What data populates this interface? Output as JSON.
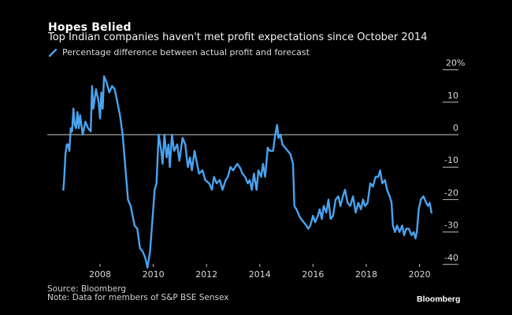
{
  "header": {
    "title": "Hopes Belied",
    "subtitle": "Top Indian companies haven't met profit expectations since October 2014"
  },
  "footer": {
    "source": "Source: Bloomberg",
    "note": "Note: Data for members of S&P BSE Sensex",
    "brand": "Bloomberg"
  },
  "colors": {
    "series": "#4aa3f0",
    "background": "#000000",
    "axis": "#bfbfbf"
  },
  "chart_data": {
    "type": "line",
    "title": "Hopes Belied",
    "subtitle": "Top Indian companies haven't met profit expectations since October 2014",
    "xlabel": "",
    "ylabel": "",
    "xlim": [
      2006.4,
      2021.5
    ],
    "ylim": [
      -40,
      20
    ],
    "x_ticks": [
      2008,
      2010,
      2012,
      2014,
      2016,
      2018,
      2020
    ],
    "x_tick_labels": [
      "2008",
      "2010",
      "2012",
      "2014",
      "2016",
      "2018",
      "2020"
    ],
    "y_ticks": [
      20,
      10,
      0,
      -10,
      -20,
      -30,
      -40
    ],
    "y_tick_labels": [
      "20%",
      "10",
      "0",
      "-10",
      "-20",
      "-30",
      "-40"
    ],
    "y_axis_side": "right",
    "reference_line": 0,
    "grid": false,
    "legend": {
      "position": "top-left",
      "entries": [
        "Percentage difference between actual profit and forecast"
      ]
    },
    "series": [
      {
        "name": "Percentage difference between actual profit and forecast",
        "points": [
          [
            2006.62,
            -17
          ],
          [
            2006.65,
            -14
          ],
          [
            2006.7,
            -6
          ],
          [
            2006.75,
            -3
          ],
          [
            2006.8,
            -3
          ],
          [
            2006.85,
            -5
          ],
          [
            2006.9,
            2
          ],
          [
            2006.95,
            1
          ],
          [
            2007.0,
            8
          ],
          [
            2007.05,
            3
          ],
          [
            2007.1,
            2
          ],
          [
            2007.15,
            7
          ],
          [
            2007.2,
            2
          ],
          [
            2007.25,
            6
          ],
          [
            2007.35,
            0
          ],
          [
            2007.45,
            4
          ],
          [
            2007.55,
            2
          ],
          [
            2007.65,
            1
          ],
          [
            2007.7,
            15
          ],
          [
            2007.75,
            8
          ],
          [
            2007.85,
            14
          ],
          [
            2007.9,
            12
          ],
          [
            2007.95,
            10
          ],
          [
            2008.0,
            5
          ],
          [
            2008.05,
            13
          ],
          [
            2008.1,
            8
          ],
          [
            2008.15,
            18
          ],
          [
            2008.25,
            16
          ],
          [
            2008.35,
            13
          ],
          [
            2008.45,
            15
          ],
          [
            2008.55,
            14
          ],
          [
            2008.65,
            10
          ],
          [
            2008.75,
            6
          ],
          [
            2008.85,
            0
          ],
          [
            2008.95,
            -10
          ],
          [
            2009.05,
            -20
          ],
          [
            2009.15,
            -22
          ],
          [
            2009.3,
            -28
          ],
          [
            2009.4,
            -29
          ],
          [
            2009.5,
            -35
          ],
          [
            2009.6,
            -36
          ],
          [
            2009.7,
            -38
          ],
          [
            2009.78,
            -41
          ],
          [
            2009.88,
            -36
          ],
          [
            2009.98,
            -25
          ],
          [
            2010.05,
            -17
          ],
          [
            2010.12,
            -15
          ],
          [
            2010.2,
            0
          ],
          [
            2010.3,
            -5
          ],
          [
            2010.35,
            -9
          ],
          [
            2010.42,
            0
          ],
          [
            2010.5,
            -7
          ],
          [
            2010.57,
            -3
          ],
          [
            2010.62,
            -10
          ],
          [
            2010.7,
            0
          ],
          [
            2010.78,
            -5
          ],
          [
            2010.9,
            -3
          ],
          [
            2010.98,
            -8
          ],
          [
            2011.1,
            -1
          ],
          [
            2011.2,
            -3
          ],
          [
            2011.3,
            -10
          ],
          [
            2011.38,
            -7
          ],
          [
            2011.45,
            -11
          ],
          [
            2011.55,
            -5
          ],
          [
            2011.62,
            -8
          ],
          [
            2011.72,
            -12
          ],
          [
            2011.85,
            -11
          ],
          [
            2011.95,
            -14
          ],
          [
            2012.1,
            -15
          ],
          [
            2012.2,
            -17
          ],
          [
            2012.28,
            -13
          ],
          [
            2012.38,
            -15
          ],
          [
            2012.5,
            -14
          ],
          [
            2012.6,
            -17
          ],
          [
            2012.72,
            -14
          ],
          [
            2012.8,
            -13
          ],
          [
            2012.9,
            -10
          ],
          [
            2013.0,
            -11
          ],
          [
            2013.15,
            -9
          ],
          [
            2013.25,
            -10
          ],
          [
            2013.35,
            -12
          ],
          [
            2013.45,
            -13
          ],
          [
            2013.55,
            -15
          ],
          [
            2013.62,
            -14
          ],
          [
            2013.7,
            -17
          ],
          [
            2013.78,
            -12
          ],
          [
            2013.88,
            -17
          ],
          [
            2013.95,
            -11
          ],
          [
            2014.05,
            -13
          ],
          [
            2014.12,
            -9
          ],
          [
            2014.2,
            -13
          ],
          [
            2014.3,
            -4
          ],
          [
            2014.38,
            -5
          ],
          [
            2014.5,
            -5
          ],
          [
            2014.58,
            0
          ],
          [
            2014.65,
            3
          ],
          [
            2014.7,
            -1
          ],
          [
            2014.78,
            0
          ],
          [
            2014.85,
            -3
          ],
          [
            2014.95,
            -4
          ],
          [
            2015.05,
            -5
          ],
          [
            2015.15,
            -6
          ],
          [
            2015.25,
            -9
          ],
          [
            2015.3,
            -22
          ],
          [
            2015.38,
            -23
          ],
          [
            2015.48,
            -25
          ],
          [
            2015.55,
            -26
          ],
          [
            2015.65,
            -27
          ],
          [
            2015.75,
            -28
          ],
          [
            2015.82,
            -29
          ],
          [
            2015.9,
            -28
          ],
          [
            2016.0,
            -25
          ],
          [
            2016.08,
            -27
          ],
          [
            2016.18,
            -25
          ],
          [
            2016.25,
            -23
          ],
          [
            2016.33,
            -26
          ],
          [
            2016.4,
            -22
          ],
          [
            2016.5,
            -24
          ],
          [
            2016.58,
            -20
          ],
          [
            2016.66,
            -26
          ],
          [
            2016.75,
            -25
          ],
          [
            2016.85,
            -20
          ],
          [
            2016.95,
            -19
          ],
          [
            2017.03,
            -22
          ],
          [
            2017.12,
            -19
          ],
          [
            2017.2,
            -17
          ],
          [
            2017.3,
            -21
          ],
          [
            2017.4,
            -22
          ],
          [
            2017.5,
            -19
          ],
          [
            2017.6,
            -24
          ],
          [
            2017.7,
            -21
          ],
          [
            2017.8,
            -23
          ],
          [
            2017.88,
            -20
          ],
          [
            2017.95,
            -22
          ],
          [
            2018.05,
            -21
          ],
          [
            2018.15,
            -15
          ],
          [
            2018.25,
            -16
          ],
          [
            2018.35,
            -13
          ],
          [
            2018.45,
            -13
          ],
          [
            2018.52,
            -11
          ],
          [
            2018.6,
            -15
          ],
          [
            2018.7,
            -14
          ],
          [
            2018.78,
            -17
          ],
          [
            2018.88,
            -19
          ],
          [
            2018.95,
            -21
          ],
          [
            2019.0,
            -28
          ],
          [
            2019.08,
            -30
          ],
          [
            2019.15,
            -28
          ],
          [
            2019.25,
            -30
          ],
          [
            2019.35,
            -28
          ],
          [
            2019.42,
            -31
          ],
          [
            2019.5,
            -29
          ],
          [
            2019.6,
            -29
          ],
          [
            2019.7,
            -31
          ],
          [
            2019.78,
            -30
          ],
          [
            2019.85,
            -32
          ],
          [
            2019.9,
            -30
          ],
          [
            2019.97,
            -23
          ],
          [
            2020.05,
            -20
          ],
          [
            2020.15,
            -19
          ],
          [
            2020.25,
            -21
          ],
          [
            2020.32,
            -22
          ],
          [
            2020.38,
            -21
          ],
          [
            2020.45,
            -24
          ]
        ]
      }
    ]
  }
}
